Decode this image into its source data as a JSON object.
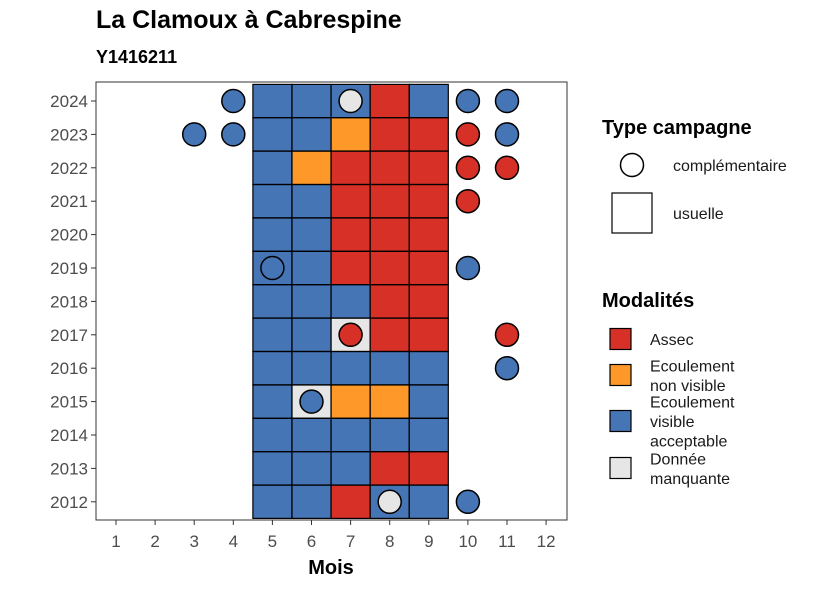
{
  "header": {
    "title": "La Clamoux à Cabrespine",
    "subtitle": "Y1416211"
  },
  "chart_data": {
    "type": "heatmap",
    "title": "La Clamoux à Cabrespine",
    "subtitle": "Y1416211",
    "xlabel": "Mois",
    "ylabel": "",
    "x_ticks": [
      "1",
      "2",
      "3",
      "4",
      "5",
      "6",
      "7",
      "8",
      "9",
      "10",
      "11",
      "12"
    ],
    "y_ticks": [
      "2024",
      "2023",
      "2022",
      "2021",
      "2020",
      "2019",
      "2018",
      "2017",
      "2016",
      "2015",
      "2014",
      "2013",
      "2012"
    ],
    "grid": false,
    "legend_placement": "right",
    "colors": {
      "Assec": "#d73027",
      "Ecoulement non visible": "#fe9929",
      "Ecoulement visible acceptable": "#4575b4",
      "Donnée manquante": "#e6e6e6"
    },
    "legends": {
      "type": {
        "title": "Type campagne",
        "items": [
          {
            "key": "complementaire",
            "label": "complémentaire",
            "shape": "circle"
          },
          {
            "key": "usuelle",
            "label": "usuelle",
            "shape": "square"
          }
        ]
      },
      "modalites": {
        "title": "Modalités",
        "items": [
          {
            "key": "Assec",
            "lines": [
              "Assec"
            ]
          },
          {
            "key": "Ecoulement non visible",
            "lines": [
              "Ecoulement",
              "non visible"
            ]
          },
          {
            "key": "Ecoulement visible acceptable",
            "lines": [
              "Ecoulement",
              "visible",
              "acceptable"
            ]
          },
          {
            "key": "Donnée manquante",
            "lines": [
              "Donnée",
              "manquante"
            ]
          }
        ]
      }
    },
    "squares": [
      {
        "year": 2024,
        "month": 5,
        "value": "Ecoulement visible acceptable"
      },
      {
        "year": 2024,
        "month": 6,
        "value": "Ecoulement visible acceptable"
      },
      {
        "year": 2024,
        "month": 7,
        "value": "Ecoulement visible acceptable"
      },
      {
        "year": 2024,
        "month": 8,
        "value": "Assec"
      },
      {
        "year": 2024,
        "month": 9,
        "value": "Ecoulement visible acceptable"
      },
      {
        "year": 2023,
        "month": 5,
        "value": "Ecoulement visible acceptable"
      },
      {
        "year": 2023,
        "month": 6,
        "value": "Ecoulement visible acceptable"
      },
      {
        "year": 2023,
        "month": 7,
        "value": "Ecoulement non visible"
      },
      {
        "year": 2023,
        "month": 8,
        "value": "Assec"
      },
      {
        "year": 2023,
        "month": 9,
        "value": "Assec"
      },
      {
        "year": 2022,
        "month": 5,
        "value": "Ecoulement visible acceptable"
      },
      {
        "year": 2022,
        "month": 6,
        "value": "Ecoulement non visible"
      },
      {
        "year": 2022,
        "month": 7,
        "value": "Assec"
      },
      {
        "year": 2022,
        "month": 8,
        "value": "Assec"
      },
      {
        "year": 2022,
        "month": 9,
        "value": "Assec"
      },
      {
        "year": 2021,
        "month": 5,
        "value": "Ecoulement visible acceptable"
      },
      {
        "year": 2021,
        "month": 6,
        "value": "Ecoulement visible acceptable"
      },
      {
        "year": 2021,
        "month": 7,
        "value": "Assec"
      },
      {
        "year": 2021,
        "month": 8,
        "value": "Assec"
      },
      {
        "year": 2021,
        "month": 9,
        "value": "Assec"
      },
      {
        "year": 2020,
        "month": 5,
        "value": "Ecoulement visible acceptable"
      },
      {
        "year": 2020,
        "month": 6,
        "value": "Ecoulement visible acceptable"
      },
      {
        "year": 2020,
        "month": 7,
        "value": "Assec"
      },
      {
        "year": 2020,
        "month": 8,
        "value": "Assec"
      },
      {
        "year": 2020,
        "month": 9,
        "value": "Assec"
      },
      {
        "year": 2019,
        "month": 5,
        "value": "Ecoulement visible acceptable"
      },
      {
        "year": 2019,
        "month": 6,
        "value": "Ecoulement visible acceptable"
      },
      {
        "year": 2019,
        "month": 7,
        "value": "Assec"
      },
      {
        "year": 2019,
        "month": 8,
        "value": "Assec"
      },
      {
        "year": 2019,
        "month": 9,
        "value": "Assec"
      },
      {
        "year": 2018,
        "month": 5,
        "value": "Ecoulement visible acceptable"
      },
      {
        "year": 2018,
        "month": 6,
        "value": "Ecoulement visible acceptable"
      },
      {
        "year": 2018,
        "month": 7,
        "value": "Ecoulement visible acceptable"
      },
      {
        "year": 2018,
        "month": 8,
        "value": "Assec"
      },
      {
        "year": 2018,
        "month": 9,
        "value": "Assec"
      },
      {
        "year": 2017,
        "month": 5,
        "value": "Ecoulement visible acceptable"
      },
      {
        "year": 2017,
        "month": 6,
        "value": "Ecoulement visible acceptable"
      },
      {
        "year": 2017,
        "month": 7,
        "value": "Donnée manquante"
      },
      {
        "year": 2017,
        "month": 8,
        "value": "Assec"
      },
      {
        "year": 2017,
        "month": 9,
        "value": "Assec"
      },
      {
        "year": 2016,
        "month": 5,
        "value": "Ecoulement visible acceptable"
      },
      {
        "year": 2016,
        "month": 6,
        "value": "Ecoulement visible acceptable"
      },
      {
        "year": 2016,
        "month": 7,
        "value": "Ecoulement visible acceptable"
      },
      {
        "year": 2016,
        "month": 8,
        "value": "Ecoulement visible acceptable"
      },
      {
        "year": 2016,
        "month": 9,
        "value": "Ecoulement visible acceptable"
      },
      {
        "year": 2015,
        "month": 5,
        "value": "Ecoulement visible acceptable"
      },
      {
        "year": 2015,
        "month": 6,
        "value": "Donnée manquante"
      },
      {
        "year": 2015,
        "month": 7,
        "value": "Ecoulement non visible"
      },
      {
        "year": 2015,
        "month": 8,
        "value": "Ecoulement non visible"
      },
      {
        "year": 2015,
        "month": 9,
        "value": "Ecoulement visible acceptable"
      },
      {
        "year": 2014,
        "month": 5,
        "value": "Ecoulement visible acceptable"
      },
      {
        "year": 2014,
        "month": 6,
        "value": "Ecoulement visible acceptable"
      },
      {
        "year": 2014,
        "month": 7,
        "value": "Ecoulement visible acceptable"
      },
      {
        "year": 2014,
        "month": 8,
        "value": "Ecoulement visible acceptable"
      },
      {
        "year": 2014,
        "month": 9,
        "value": "Ecoulement visible acceptable"
      },
      {
        "year": 2013,
        "month": 5,
        "value": "Ecoulement visible acceptable"
      },
      {
        "year": 2013,
        "month": 6,
        "value": "Ecoulement visible acceptable"
      },
      {
        "year": 2013,
        "month": 7,
        "value": "Ecoulement visible acceptable"
      },
      {
        "year": 2013,
        "month": 8,
        "value": "Assec"
      },
      {
        "year": 2013,
        "month": 9,
        "value": "Assec"
      },
      {
        "year": 2012,
        "month": 5,
        "value": "Ecoulement visible acceptable"
      },
      {
        "year": 2012,
        "month": 6,
        "value": "Ecoulement visible acceptable"
      },
      {
        "year": 2012,
        "month": 7,
        "value": "Assec"
      },
      {
        "year": 2012,
        "month": 8,
        "value": "Ecoulement visible acceptable"
      },
      {
        "year": 2012,
        "month": 9,
        "value": "Ecoulement visible acceptable"
      }
    ],
    "circles": [
      {
        "year": 2024,
        "month": 4,
        "value": "Ecoulement visible acceptable"
      },
      {
        "year": 2024,
        "month": 7,
        "value": "Donnée manquante"
      },
      {
        "year": 2024,
        "month": 10,
        "value": "Ecoulement visible acceptable"
      },
      {
        "year": 2024,
        "month": 11,
        "value": "Ecoulement visible acceptable"
      },
      {
        "year": 2023,
        "month": 3,
        "value": "Ecoulement visible acceptable"
      },
      {
        "year": 2023,
        "month": 4,
        "value": "Ecoulement visible acceptable"
      },
      {
        "year": 2023,
        "month": 10,
        "value": "Assec"
      },
      {
        "year": 2023,
        "month": 11,
        "value": "Ecoulement visible acceptable"
      },
      {
        "year": 2022,
        "month": 10,
        "value": "Assec"
      },
      {
        "year": 2022,
        "month": 11,
        "value": "Assec"
      },
      {
        "year": 2021,
        "month": 10,
        "value": "Assec"
      },
      {
        "year": 2019,
        "month": 5,
        "value": "Ecoulement visible acceptable"
      },
      {
        "year": 2019,
        "month": 10,
        "value": "Ecoulement visible acceptable"
      },
      {
        "year": 2017,
        "month": 7,
        "value": "Assec"
      },
      {
        "year": 2017,
        "month": 11,
        "value": "Assec"
      },
      {
        "year": 2016,
        "month": 11,
        "value": "Ecoulement visible acceptable"
      },
      {
        "year": 2015,
        "month": 6,
        "value": "Ecoulement visible acceptable"
      },
      {
        "year": 2012,
        "month": 8,
        "value": "Donnée manquante"
      },
      {
        "year": 2012,
        "month": 10,
        "value": "Ecoulement visible acceptable"
      }
    ]
  }
}
